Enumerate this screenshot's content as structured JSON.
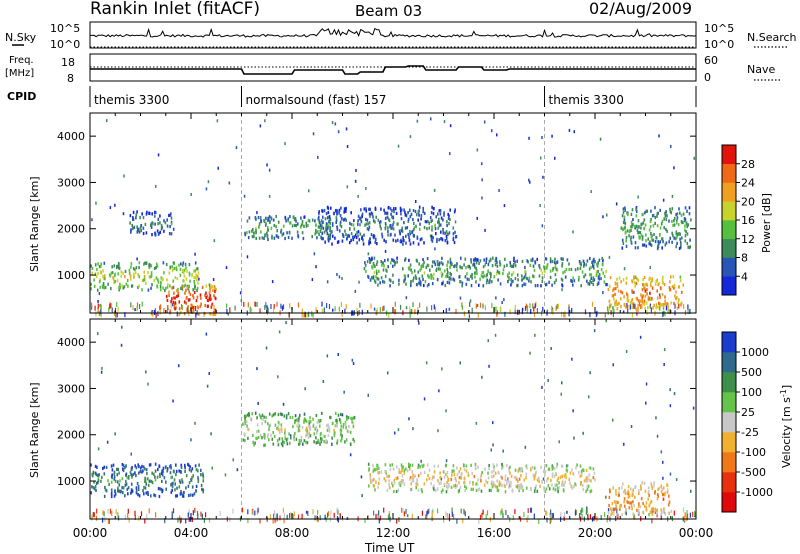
{
  "header": {
    "title": "Rankin Inlet (fitACF)",
    "beam": "Beam 03",
    "date": "02/Aug/2009"
  },
  "noise_panel": {
    "left_label": "N.Sky",
    "left_ticks": [
      "10^5",
      "10^0"
    ],
    "right_label": "N.Search",
    "right_ticks": [
      "10^5",
      "10^0"
    ]
  },
  "freq_panel": {
    "left_label_1": "Freq.",
    "left_label_2": "[MHz]",
    "left_ticks": [
      "18",
      "8"
    ],
    "right_label": "Nave",
    "right_ticks": [
      "60",
      "0"
    ]
  },
  "cpid": {
    "label": "CPID",
    "segments": [
      {
        "text": "themis 3300",
        "start_h": 0,
        "end_h": 6
      },
      {
        "text": "normalsound (fast) 157",
        "start_h": 6,
        "end_h": 18
      },
      {
        "text": "themis 3300",
        "start_h": 18,
        "end_h": 24
      }
    ]
  },
  "xaxis": {
    "label": "Time UT",
    "ticks": [
      "00:00",
      "04:00",
      "08:00",
      "12:00",
      "16:00",
      "20:00",
      "00:00"
    ]
  },
  "power_panel": {
    "ylabel": "Slant Range [km]",
    "yticks": [
      "1000",
      "2000",
      "3000",
      "4000"
    ],
    "colorbar_label": "Power [dB]",
    "colorbar_ticks": [
      "4",
      "8",
      "12",
      "16",
      "20",
      "24",
      "28"
    ],
    "colors": [
      "#1428d8",
      "#2a55b8",
      "#3c8c5a",
      "#56c03e",
      "#c8d22a",
      "#f0a01e",
      "#ee6a14",
      "#e0140a"
    ]
  },
  "velocity_panel": {
    "ylabel": "Slant Range [km]",
    "yticks": [
      "1000",
      "2000",
      "3000",
      "4000"
    ],
    "colorbar_label": "Velocity [m s",
    "colorbar_label_sup": "-1",
    "colorbar_label_end": "]",
    "colorbar_ticks": [
      "1000",
      "500",
      "100",
      "25",
      "-25",
      "-100",
      "-500",
      "-1000"
    ],
    "colors": [
      "#1a3ccf",
      "#2f6a8c",
      "#3f8f4a",
      "#64c44a",
      "#c8c8c8",
      "#f0b030",
      "#f07818",
      "#e83010",
      "#e00808"
    ]
  },
  "chart_data": {
    "type": "heatmap",
    "x_range_hours": [
      0,
      24
    ],
    "y_range_km": [
      180,
      4500
    ],
    "mode_changes_hours": [
      6,
      18
    ],
    "power_features": [
      {
        "start_h": 0.0,
        "end_h": 4.3,
        "range_min_km": 700,
        "range_max_km": 1300,
        "level": 4
      },
      {
        "start_h": 3.0,
        "end_h": 5.0,
        "range_min_km": 180,
        "range_max_km": 800,
        "level": 7
      },
      {
        "start_h": 1.5,
        "end_h": 3.3,
        "range_min_km": 1900,
        "range_max_km": 2400,
        "level": 2
      },
      {
        "start_h": 6.1,
        "end_h": 9.5,
        "range_min_km": 1800,
        "range_max_km": 2300,
        "level": 3
      },
      {
        "start_h": 9.0,
        "end_h": 14.5,
        "range_min_km": 1700,
        "range_max_km": 2500,
        "level": 2
      },
      {
        "start_h": 10.8,
        "end_h": 20.5,
        "range_min_km": 800,
        "range_max_km": 1400,
        "level": 3
      },
      {
        "start_h": 20.5,
        "end_h": 23.5,
        "range_min_km": 300,
        "range_max_km": 1000,
        "level": 6
      },
      {
        "start_h": 21.0,
        "end_h": 23.8,
        "range_min_km": 1600,
        "range_max_km": 2500,
        "level": 3
      }
    ],
    "velocity_features": [
      {
        "start_h": 0.0,
        "end_h": 4.5,
        "range_min_km": 700,
        "range_max_km": 1400,
        "level": 2
      },
      {
        "start_h": 6.0,
        "end_h": 10.5,
        "range_min_km": 1800,
        "range_max_km": 2500,
        "level": 4
      },
      {
        "start_h": 11.0,
        "end_h": 20.0,
        "range_min_km": 800,
        "range_max_km": 1400,
        "level": 5
      },
      {
        "start_h": 20.5,
        "end_h": 23.0,
        "range_min_km": 300,
        "range_max_km": 1000,
        "level": 6
      }
    ]
  }
}
